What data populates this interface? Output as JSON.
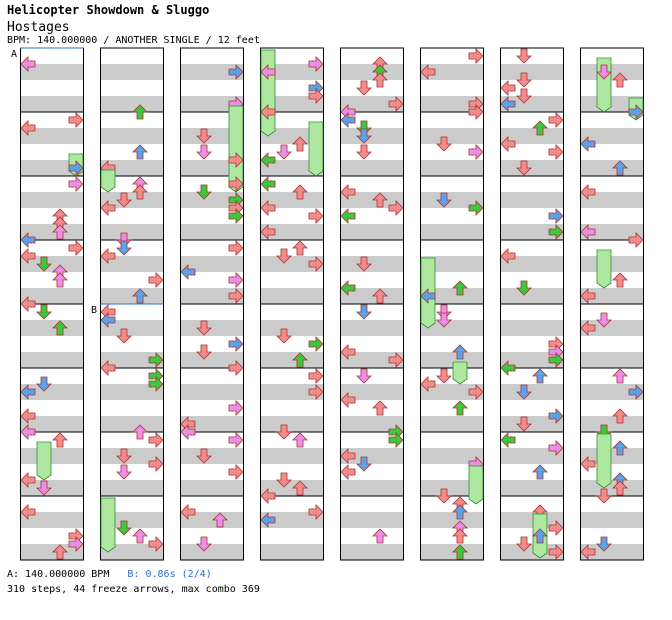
{
  "song": {
    "title": "Helicopter Showdown & Sluggo",
    "subtitle": "Hostages",
    "chart_info": "BPM: 140.000000 / ANOTHER SINGLE / 12 feet"
  },
  "chart_data": {
    "type": "table",
    "columns": 8,
    "measures_per_column": 8,
    "total_measures": 64,
    "lanes": [
      "left",
      "down",
      "up",
      "right"
    ],
    "markers": [
      {
        "label": "A",
        "measure": 0
      },
      {
        "label": "B",
        "measure": 12
      }
    ],
    "freeze_color": "#aee8a0"
  },
  "legend": {
    "a_text": "A: 140.000000 BPM",
    "b_text": "B: 0.86s (2/4)",
    "stats": "310 steps, 44 freeze arrows, max combo 369"
  },
  "colors": {
    "quarter": "#f28b8b",
    "eighth": "#5ba3e8",
    "sixteenth": "#3cc83c",
    "twelfth": "#e88fe8",
    "freeze": "#aee8a0",
    "stripe": "#cccccc"
  }
}
